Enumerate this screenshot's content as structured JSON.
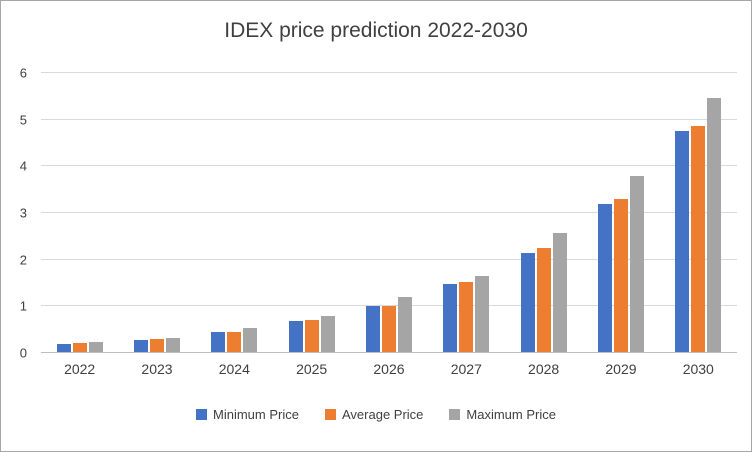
{
  "chart_data": {
    "type": "bar",
    "title": "IDEX price prediction 2022-2030",
    "categories": [
      "2022",
      "2023",
      "2024",
      "2025",
      "2026",
      "2027",
      "2028",
      "2029",
      "2030"
    ],
    "series": [
      {
        "name": "Minimum Price",
        "color": "#4472C4",
        "values": [
          0.2,
          0.28,
          0.44,
          0.68,
          1.0,
          1.47,
          2.15,
          3.2,
          4.75
        ]
      },
      {
        "name": "Average Price",
        "color": "#ED7D31",
        "values": [
          0.21,
          0.3,
          0.46,
          0.7,
          1.01,
          1.52,
          2.25,
          3.3,
          4.87
        ]
      },
      {
        "name": "Maximum Price",
        "color": "#A5A5A5",
        "values": [
          0.24,
          0.33,
          0.53,
          0.8,
          1.2,
          1.65,
          2.57,
          3.8,
          5.47
        ]
      }
    ],
    "xlabel": "",
    "ylabel": "",
    "ylim": [
      0,
      6
    ],
    "yticks": [
      0,
      1,
      2,
      3,
      4,
      5,
      6
    ],
    "grid": true,
    "legend_position": "bottom"
  },
  "colors": {
    "gridline": "#D9D9D9",
    "axis_line": "#BFBFBF",
    "text": "#404040",
    "frame_border": "#A6A6A6",
    "background": "#FFFFFF"
  }
}
